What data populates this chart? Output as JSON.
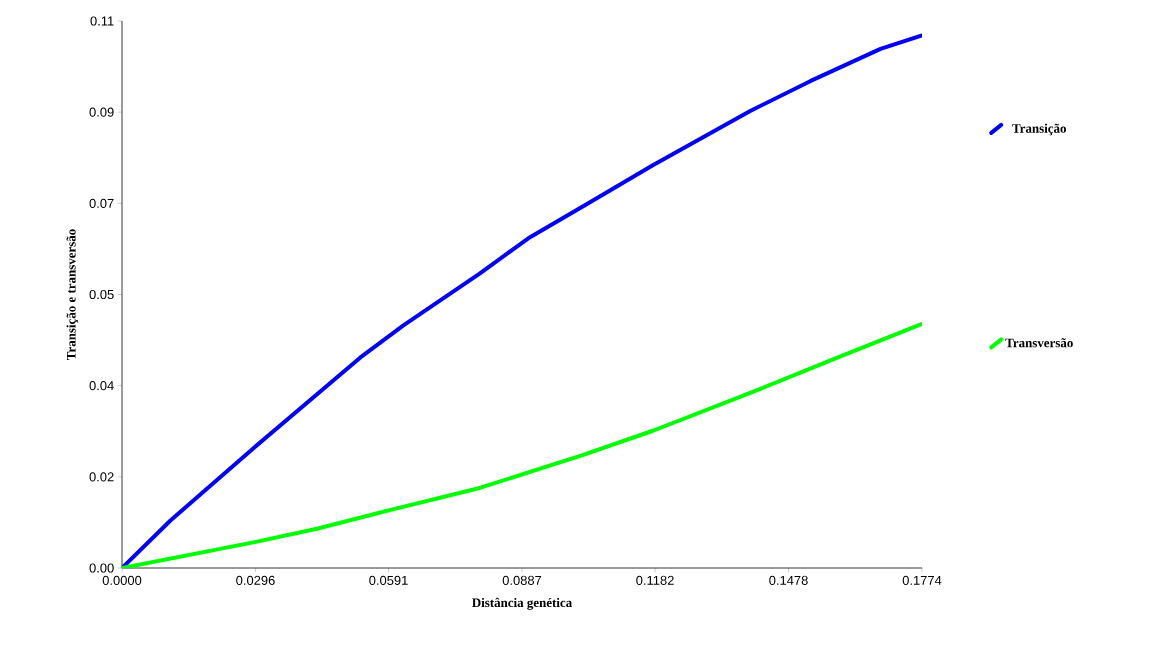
{
  "chart_data": {
    "type": "line",
    "xlabel": "Distância genética",
    "ylabel": "Transição e transversão",
    "xlim": [
      0,
      0.1774
    ],
    "ylim": [
      0,
      0.11
    ],
    "xticks": [
      {
        "value": 0,
        "label": "0.0000"
      },
      0.0296,
      0.0591,
      0.0887,
      0.1182,
      0.1478,
      0.1774
    ],
    "yticks": [
      {
        "value": 0,
        "label": "0.00"
      },
      {
        "value": 0.01833,
        "label": "0.02"
      },
      {
        "value": 0.03667,
        "label": "0.04"
      },
      {
        "value": 0.055,
        "label": "0.05"
      },
      {
        "value": 0.07333,
        "label": "0.07"
      },
      {
        "value": 0.09167,
        "label": "0.09"
      },
      {
        "value": 0.11,
        "label": "0.11"
      }
    ],
    "legend": "right",
    "grid": false,
    "marker": "none",
    "line_style": "solid",
    "series": [
      {
        "name": "Transição",
        "color": "#0000ff",
        "x": [
          0,
          0.0108,
          0.0294,
          0.0528,
          0.0624,
          0.0793,
          0.0901,
          0.1033,
          0.1177,
          0.1393,
          0.1526,
          0.1682,
          0.1774
        ],
        "values": [
          0,
          0.0096,
          0.0243,
          0.0423,
          0.0488,
          0.0592,
          0.0663,
          0.0733,
          0.081,
          0.0919,
          0.0979,
          0.1044,
          0.1071
        ]
      },
      {
        "name": "Transversão",
        "color": "#00ff00",
        "x": [
          0,
          0.0294,
          0.0432,
          0.06,
          0.0793,
          0.1021,
          0.1177,
          0.1393,
          0.1586,
          0.1774
        ],
        "values": [
          0,
          0.0052,
          0.0079,
          0.0118,
          0.0161,
          0.0227,
          0.0276,
          0.0352,
          0.0423,
          0.0491
        ]
      }
    ]
  }
}
